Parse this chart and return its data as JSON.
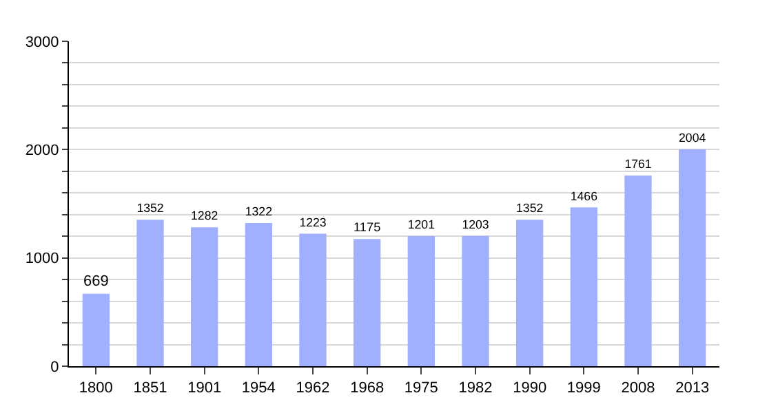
{
  "chart_data": {
    "type": "bar",
    "categories": [
      "1800",
      "1851",
      "1901",
      "1954",
      "1962",
      "1968",
      "1975",
      "1982",
      "1990",
      "1999",
      "2008",
      "2013"
    ],
    "values": [
      669,
      1352,
      1282,
      1322,
      1223,
      1175,
      1201,
      1203,
      1352,
      1466,
      1761,
      2004
    ],
    "color": "#a0b0ff",
    "data_labels": true,
    "ylim": [
      0,
      3000
    ],
    "yticks": [
      0,
      {
        "value": 200,
        "label": null
      },
      {
        "value": 400,
        "label": null
      },
      {
        "value": 600,
        "label": null
      },
      {
        "value": 800,
        "label": null
      },
      1000,
      {
        "value": 1200,
        "label": null
      },
      {
        "value": 1400,
        "label": null
      },
      {
        "value": 1600,
        "label": null
      },
      {
        "value": 1800,
        "label": null
      },
      2000,
      {
        "value": 2200,
        "label": null
      },
      {
        "value": 2400,
        "label": null
      },
      {
        "value": 2600,
        "label": null
      },
      {
        "value": 2800,
        "label": null
      },
      3000
    ],
    "grid": "y"
  }
}
